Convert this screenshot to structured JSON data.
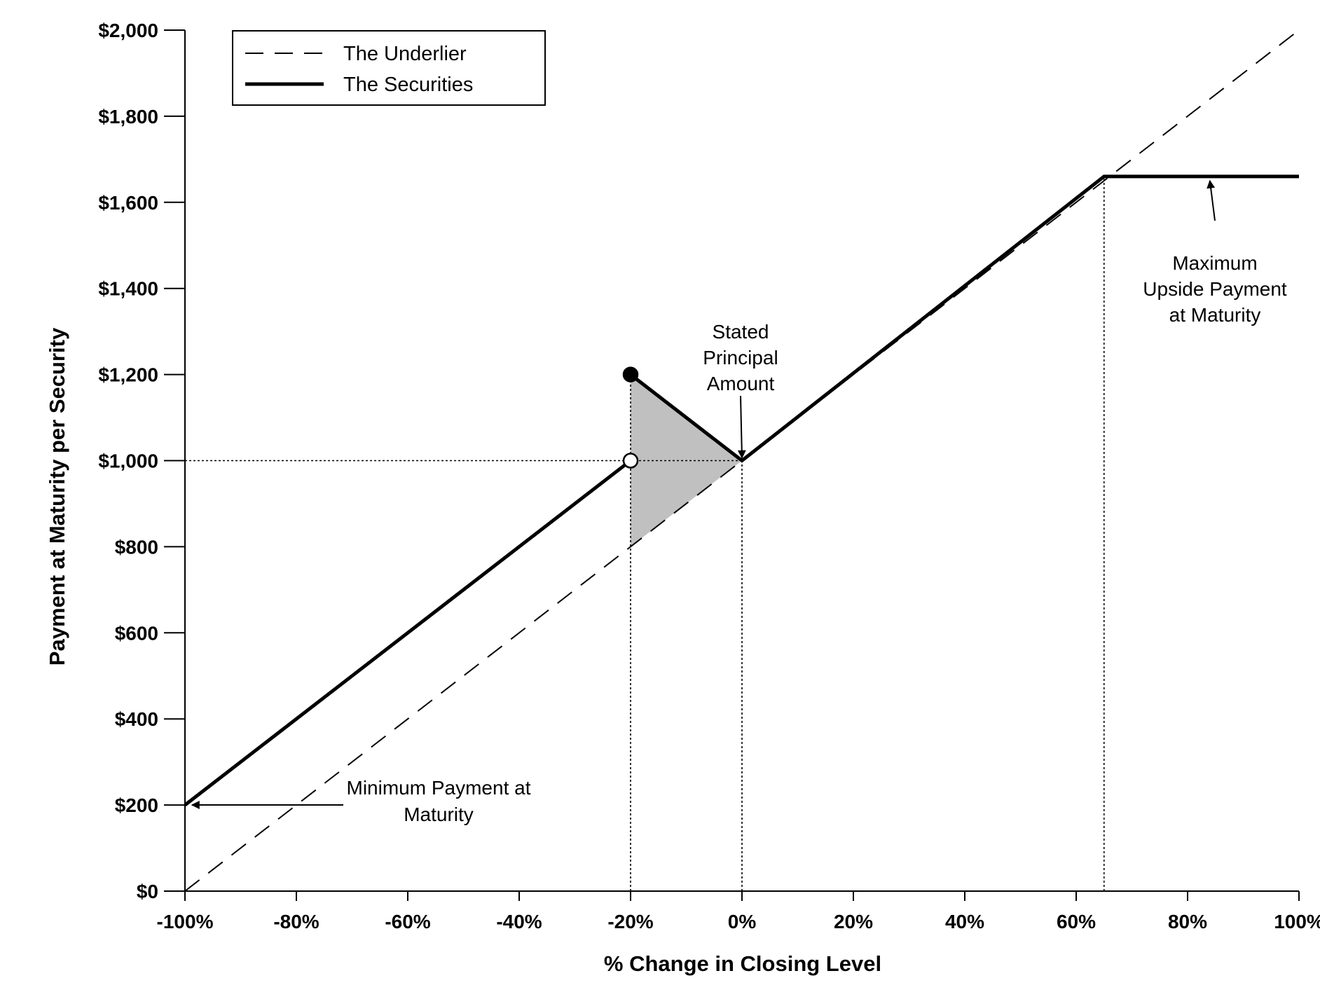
{
  "chart_data": {
    "type": "line",
    "xlabel": "% Change in Closing Level",
    "ylabel": "Payment at Maturity per Security",
    "xlim": [
      -100,
      100
    ],
    "ylim": [
      0,
      2000
    ],
    "x_ticks": [
      -100,
      -80,
      -60,
      -40,
      -20,
      0,
      20,
      40,
      60,
      80,
      100
    ],
    "x_tick_labels": [
      "-100%",
      "-80%",
      "-60%",
      "-40%",
      "-20%",
      "0%",
      "20%",
      "40%",
      "60%",
      "80%",
      "100%"
    ],
    "y_ticks": [
      0,
      200,
      400,
      600,
      800,
      1000,
      1200,
      1400,
      1600,
      1800,
      2000
    ],
    "y_tick_labels": [
      "$0",
      "$200",
      "$400",
      "$600",
      "$800",
      "$1,000",
      "$1,200",
      "$1,400",
      "$1,600",
      "$1,800",
      "$2,000"
    ],
    "grid": false,
    "legend_position": "top-left",
    "series": [
      {
        "name": "The Underlier",
        "style": "dashed",
        "points": [
          [
            -100,
            0
          ],
          [
            100,
            2000
          ]
        ]
      },
      {
        "name": "The Securities",
        "style": "solid",
        "segments": [
          [
            [
              -100,
              200
            ],
            [
              -20,
              1000
            ]
          ],
          [
            [
              -20,
              1200
            ],
            [
              0,
              1000
            ],
            [
              65,
              1660
            ],
            [
              100,
              1660
            ]
          ]
        ]
      }
    ],
    "markers": [
      {
        "x": -20,
        "y": 1200,
        "fill": "filled"
      },
      {
        "x": -20,
        "y": 1000,
        "fill": "open"
      }
    ],
    "shaded_region": {
      "points": [
        [
          -20,
          1200
        ],
        [
          0,
          1000
        ],
        [
          -20,
          800
        ]
      ],
      "color": "#c0c0c0"
    },
    "reference_lines": [
      {
        "orientation": "horizontal",
        "y": 1000,
        "x_from": -100,
        "x_to": 0
      },
      {
        "orientation": "vertical",
        "x": -20,
        "y_from": 0,
        "y_to": 1200
      },
      {
        "orientation": "vertical",
        "x": 0,
        "y_from": 0,
        "y_to": 1000
      },
      {
        "orientation": "vertical",
        "x": 65,
        "y_from": 0,
        "y_to": 1660
      }
    ],
    "annotations": [
      {
        "id": "stated",
        "lines": [
          "Stated",
          "Principal",
          "Amount"
        ],
        "arrow_to": [
          0,
          1000
        ]
      },
      {
        "id": "maximum",
        "lines": [
          "Maximum",
          "Upside Payment",
          "at Maturity"
        ],
        "arrow_to": [
          84,
          1660
        ]
      },
      {
        "id": "minimum",
        "lines": [
          "Minimum Payment at",
          "Maturity"
        ],
        "arrow_to": [
          -100,
          200
        ]
      }
    ]
  }
}
